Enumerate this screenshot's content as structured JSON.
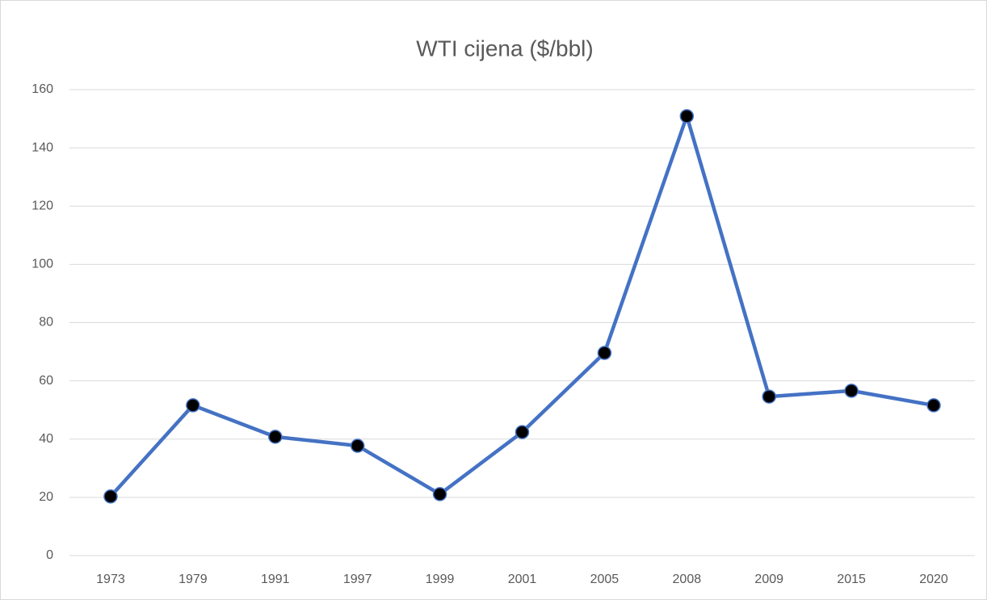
{
  "chart_data": {
    "type": "line",
    "title": "WTI cijena ($/bbl)",
    "categories": [
      "1973",
      "1979",
      "1991",
      "1997",
      "1999",
      "2001",
      "2005",
      "2008",
      "2009",
      "2015",
      "2020"
    ],
    "series": [
      {
        "name": "WTI cijena ($/bbl)",
        "color": "#4472c4",
        "marker_color": "#000000",
        "values": [
          20.3,
          51.6,
          40.8,
          37.7,
          21.1,
          42.4,
          69.6,
          150.9,
          54.6,
          56.6,
          51.6
        ]
      }
    ],
    "ylim": [
      0,
      160
    ],
    "yticks": [
      0,
      20,
      40,
      60,
      80,
      100,
      120,
      140,
      160
    ],
    "grid": true
  }
}
